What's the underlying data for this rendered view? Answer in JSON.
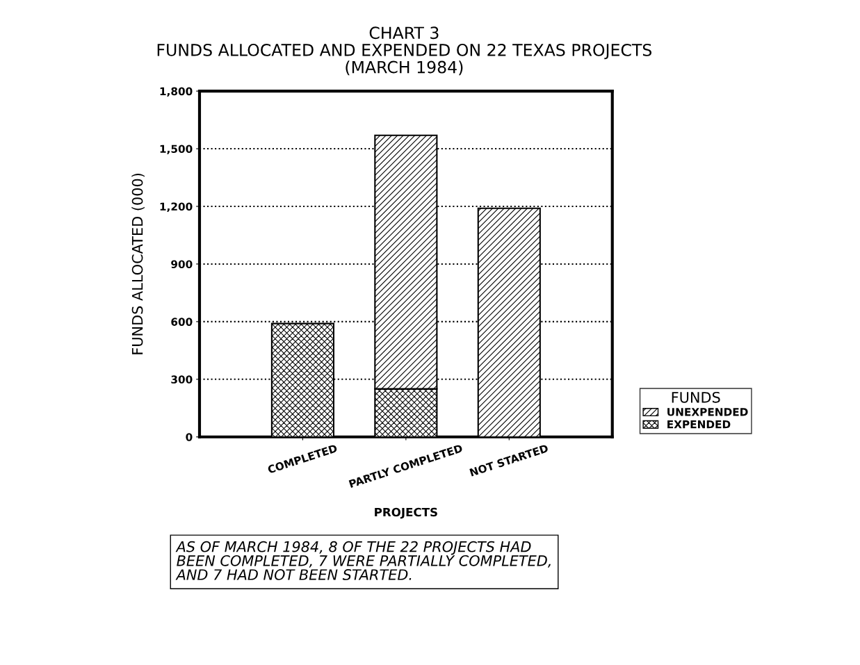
{
  "chart_data": {
    "type": "bar",
    "title": "CHART 3\nFUNDS ALLOCATED AND EXPENDED ON 22 TEXAS PROJECTS\n(MARCH 1984)",
    "xlabel": "PROJECTS",
    "ylabel": "FUNDS ALLOCATED (000)",
    "legend_title": "FUNDS",
    "categories": [
      "COMPLETED",
      "PARTLY COMPLETED",
      "NOT STARTED"
    ],
    "stacked": true,
    "series": [
      {
        "name": "EXPENDED",
        "color": "#000000",
        "values": [
          590,
          250,
          null
        ]
      },
      {
        "name": "UNEXPENDED",
        "color": "#000000",
        "values": [
          null,
          1320,
          1190
        ]
      }
    ],
    "ylim": [
      0,
      1800
    ],
    "yticks": [
      0,
      300,
      600,
      900,
      {
        "value": 1200,
        "label": "1,200"
      },
      {
        "value": 1500,
        "label": "1,500"
      },
      {
        "value": 1800,
        "label": "1,800"
      }
    ],
    "grid": "y",
    "legend": "bottom right",
    "annotations": [
      "AS OF MARCH 1984, 8 OF THE 22 PROJECTS HAD\nBEEN COMPLETED, 7 WERE PARTIALLY COMPLETED,\nAND 7 HAD NOT BEEN STARTED."
    ]
  }
}
